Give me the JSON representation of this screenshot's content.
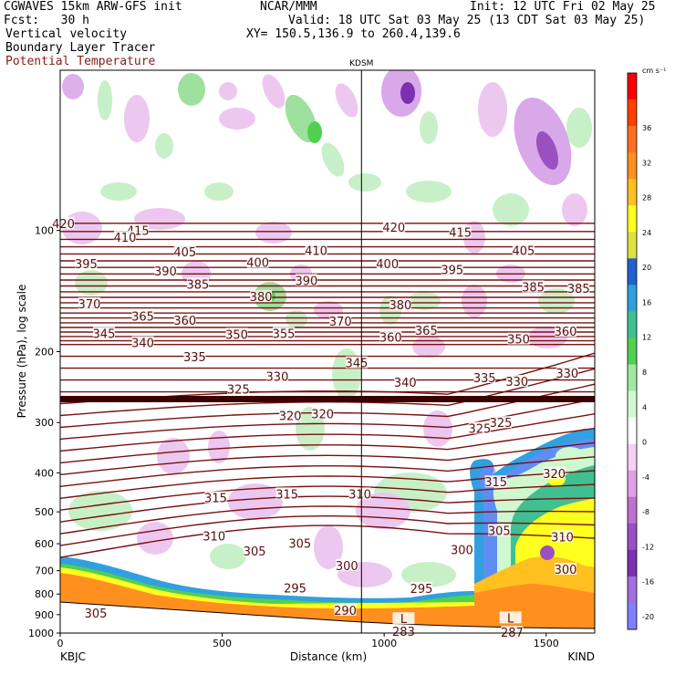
{
  "header": {
    "model": "CGWAVES 15km ARW-GFS init",
    "forecast": "Fcst:   30 h",
    "org": "NCAR/MMM",
    "init": "Init: 12 UTC Fri 02 May 25",
    "valid": "Valid: 18 UTC Sat 03 May 25 (13 CDT Sat 03 May 25)",
    "xy": "XY= 150.5,136.9 to 260.4,139.6"
  },
  "fields": [
    {
      "label": "Vertical velocity",
      "color": "#000000"
    },
    {
      "label": "Boundary Layer Tracer",
      "color": "#000000"
    },
    {
      "label": "Potential Temperature",
      "color": "#8b1a1a"
    }
  ],
  "chart_data": {
    "type": "heatmap",
    "xlabel": "Distance (km)",
    "ylabel": "Pressure (hPa), log scale",
    "xlim": [
      0,
      1650
    ],
    "ylim": [
      1000,
      40
    ],
    "x_ticks": [
      0,
      500,
      1000,
      1500
    ],
    "y_ticks": [
      100,
      200,
      300,
      400,
      500,
      600,
      700,
      800,
      900,
      1000
    ],
    "station_marker": {
      "label": "KDSM",
      "x_km": 930
    },
    "endpoints": {
      "left": "KBJC",
      "right": "KIND"
    },
    "colorbar": {
      "unit": "cm s⁻¹",
      "levels": [
        -20,
        -16,
        -12,
        -8,
        -4,
        0,
        4,
        8,
        12,
        16,
        20,
        24,
        28,
        32,
        36
      ],
      "colors": [
        "#8080ff",
        "#a070e0",
        "#7b30b0",
        "#9a50c0",
        "#c070d0",
        "#e0a0e8",
        "#f4d0f4",
        "#ffffff",
        "#d0f8d0",
        "#a0e8a0",
        "#50d050",
        "#40c090",
        "#30a0e0",
        "#2060d0",
        "#e0e040",
        "#ffff20",
        "#ffc020",
        "#ff9020",
        "#ff7020",
        "#ff4000",
        "#ff0000"
      ]
    },
    "theta_labels": [
      {
        "x": 10,
        "p": 96,
        "v": "420"
      },
      {
        "x": 240,
        "p": 100,
        "v": "415"
      },
      {
        "x": 1030,
        "p": 98,
        "v": "420"
      },
      {
        "x": 1235,
        "p": 101,
        "v": "415"
      },
      {
        "x": 200,
        "p": 104,
        "v": "410"
      },
      {
        "x": 790,
        "p": 112,
        "v": "410"
      },
      {
        "x": 80,
        "p": 121,
        "v": "395"
      },
      {
        "x": 385,
        "p": 113,
        "v": "405"
      },
      {
        "x": 1430,
        "p": 112,
        "v": "405"
      },
      {
        "x": 610,
        "p": 120,
        "v": "400"
      },
      {
        "x": 1010,
        "p": 121,
        "v": "400"
      },
      {
        "x": 1210,
        "p": 125,
        "v": "395"
      },
      {
        "x": 325,
        "p": 126,
        "v": "390"
      },
      {
        "x": 760,
        "p": 133,
        "v": "390"
      },
      {
        "x": 425,
        "p": 136,
        "v": "385"
      },
      {
        "x": 1460,
        "p": 138,
        "v": "385"
      },
      {
        "x": 1600,
        "p": 139,
        "v": "385"
      },
      {
        "x": 620,
        "p": 146,
        "v": "380"
      },
      {
        "x": 90,
        "p": 152,
        "v": "370"
      },
      {
        "x": 255,
        "p": 163,
        "v": "365"
      },
      {
        "x": 385,
        "p": 167,
        "v": "360"
      },
      {
        "x": 1050,
        "p": 153,
        "v": "380"
      },
      {
        "x": 865,
        "p": 168,
        "v": "370"
      },
      {
        "x": 1560,
        "p": 178,
        "v": "360"
      },
      {
        "x": 135,
        "p": 180,
        "v": "345"
      },
      {
        "x": 1130,
        "p": 177,
        "v": "365"
      },
      {
        "x": 1020,
        "p": 184,
        "v": "360"
      },
      {
        "x": 545,
        "p": 181,
        "v": "350"
      },
      {
        "x": 690,
        "p": 180,
        "v": "355"
      },
      {
        "x": 1415,
        "p": 186,
        "v": "350"
      },
      {
        "x": 255,
        "p": 190,
        "v": "340"
      },
      {
        "x": 415,
        "p": 206,
        "v": "335"
      },
      {
        "x": 915,
        "p": 213,
        "v": "345"
      },
      {
        "x": 1065,
        "p": 238,
        "v": "340"
      },
      {
        "x": 1310,
        "p": 232,
        "v": "335"
      },
      {
        "x": 1410,
        "p": 237,
        "v": "330"
      },
      {
        "x": 1565,
        "p": 226,
        "v": "330"
      },
      {
        "x": 670,
        "p": 230,
        "v": "330"
      },
      {
        "x": 550,
        "p": 248,
        "v": "325"
      },
      {
        "x": 710,
        "p": 288,
        "v": "320"
      },
      {
        "x": 810,
        "p": 285,
        "v": "320"
      },
      {
        "x": 1360,
        "p": 300,
        "v": "325"
      },
      {
        "x": 1295,
        "p": 310,
        "v": "325"
      },
      {
        "x": 1525,
        "p": 401,
        "v": "320"
      },
      {
        "x": 480,
        "p": 461,
        "v": "315"
      },
      {
        "x": 700,
        "p": 451,
        "v": "315"
      },
      {
        "x": 925,
        "p": 451,
        "v": "310"
      },
      {
        "x": 1345,
        "p": 421,
        "v": "315"
      },
      {
        "x": 475,
        "p": 573,
        "v": "310"
      },
      {
        "x": 1550,
        "p": 576,
        "v": "310"
      },
      {
        "x": 1355,
        "p": 556,
        "v": "305"
      },
      {
        "x": 740,
        "p": 598,
        "v": "305"
      },
      {
        "x": 600,
        "p": 626,
        "v": "305"
      },
      {
        "x": 885,
        "p": 679,
        "v": "300"
      },
      {
        "x": 1240,
        "p": 621,
        "v": "300"
      },
      {
        "x": 1560,
        "p": 694,
        "v": "300"
      },
      {
        "x": 725,
        "p": 773,
        "v": "295"
      },
      {
        "x": 1115,
        "p": 774,
        "v": "295"
      },
      {
        "x": 880,
        "p": 877,
        "v": "290"
      },
      {
        "x": 110,
        "p": 891,
        "v": "305"
      },
      {
        "x": 1060,
        "p": 921,
        "v": "L"
      },
      {
        "x": 1390,
        "p": 917,
        "v": "L"
      },
      {
        "x": 1060,
        "p": 990,
        "v": "283"
      },
      {
        "x": 1395,
        "p": 996,
        "v": "287"
      }
    ]
  }
}
